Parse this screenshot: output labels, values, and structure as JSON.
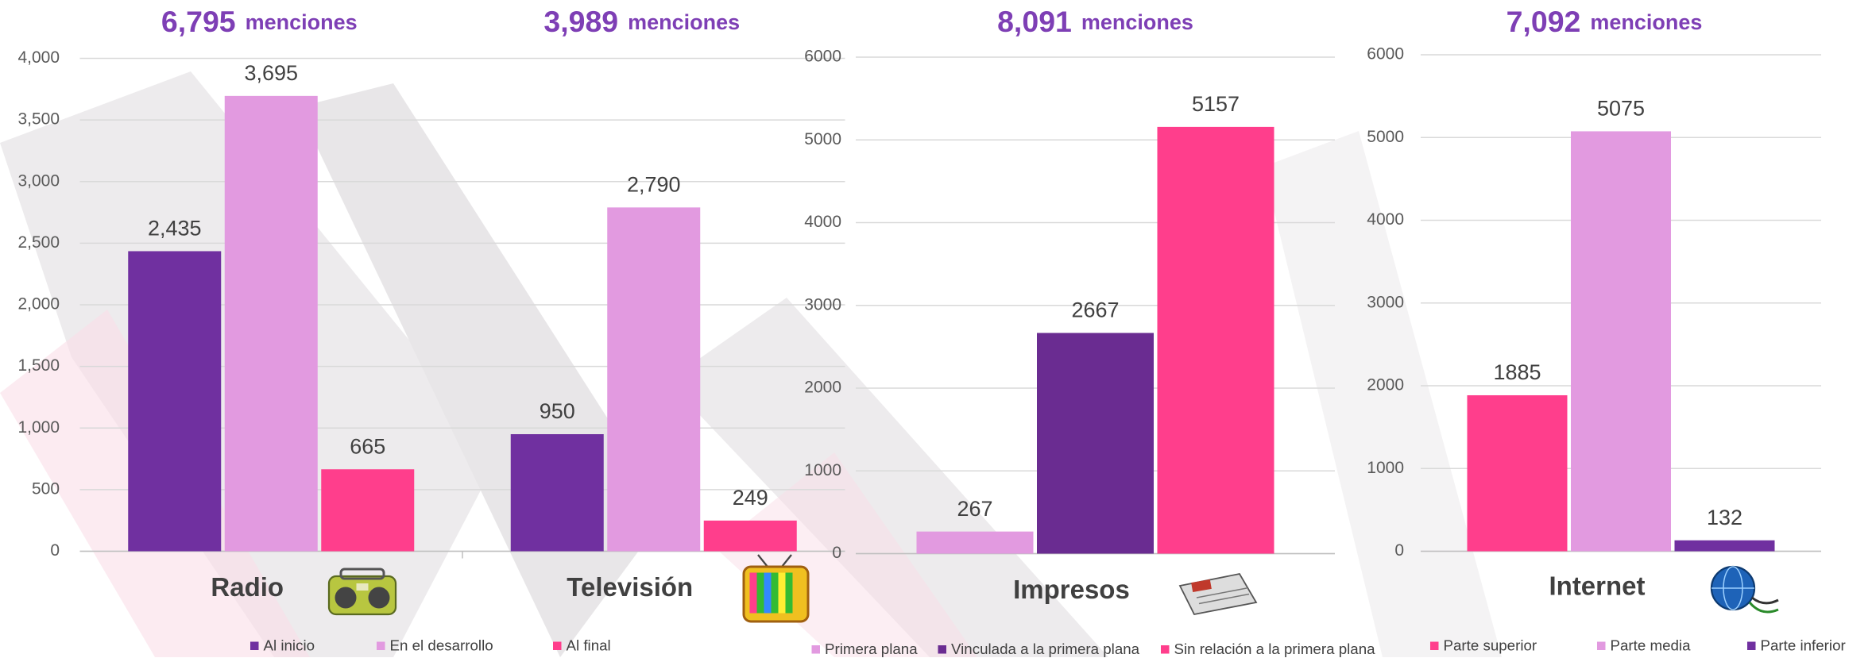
{
  "chart_data": [
    {
      "type": "bar",
      "categories": [
        "Radio",
        "Televisión"
      ],
      "mentions": [
        {
          "number": "6,795",
          "text": "menciones"
        },
        {
          "number": "3,989",
          "text": "menciones"
        }
      ],
      "series": [
        {
          "name": "Al inicio",
          "color": "#7030a0",
          "values": [
            2435,
            950
          ],
          "value_labels": [
            "2,435",
            "950"
          ]
        },
        {
          "name": "En el desarrollo",
          "color": "#e29ae0",
          "values": [
            3695,
            2790
          ],
          "value_labels": [
            "3,695",
            "2,790"
          ]
        },
        {
          "name": "Al final",
          "color": "#ff3e8c",
          "values": [
            665,
            249
          ],
          "value_labels": [
            "665",
            "249"
          ]
        }
      ],
      "ylim": [
        0,
        4000
      ],
      "yticks": [
        0,
        500,
        {
          "value": 1000,
          "label": "1,000"
        },
        {
          "value": 1500,
          "label": "1,500"
        },
        {
          "value": 2000,
          "label": "2,000"
        },
        {
          "value": 2500,
          "label": "2,500"
        },
        {
          "value": 3000,
          "label": "3,000"
        },
        {
          "value": 3500,
          "label": "3,500"
        },
        {
          "value": 4000,
          "label": "4,000"
        }
      ],
      "grid": true
    },
    {
      "type": "bar",
      "categories": [
        "Impresos"
      ],
      "mentions": [
        {
          "number": "8,091",
          "text": "menciones"
        }
      ],
      "series": [
        {
          "name": "Primera plana",
          "color": "#e29ae0",
          "values": [
            267
          ]
        },
        {
          "name": "Vinculada a la primera plana",
          "color": "#6a2c91",
          "values": [
            2667
          ]
        },
        {
          "name": "Sin relación a la primera plana",
          "color": "#ff3e8c",
          "values": [
            5157
          ]
        }
      ],
      "ylim": [
        0,
        6000
      ],
      "yticks": [
        0,
        1000,
        2000,
        3000,
        4000,
        5000,
        6000
      ],
      "grid": true
    },
    {
      "type": "bar",
      "categories": [
        "Internet"
      ],
      "mentions": [
        {
          "number": "7,092",
          "text": "menciones"
        }
      ],
      "series": [
        {
          "name": "Parte superior",
          "color": "#ff3e8c",
          "values": [
            1885
          ]
        },
        {
          "name": "Parte media",
          "color": "#e29ae0",
          "values": [
            5075
          ]
        },
        {
          "name": "Parte inferior",
          "color": "#7030a0",
          "values": [
            132
          ]
        }
      ],
      "ylim": [
        0,
        6000
      ],
      "yticks": [
        0,
        1000,
        2000,
        3000,
        4000,
        5000,
        6000
      ],
      "grid": true
    }
  ]
}
